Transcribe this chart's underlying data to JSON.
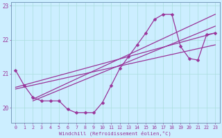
{
  "xlabel": "Windchill (Refroidissement éolien,°C)",
  "background_color": "#cceeff",
  "grid_color": "#aadddd",
  "line_color": "#993399",
  "xlim": [
    -0.5,
    23.5
  ],
  "ylim": [
    19.55,
    23.1
  ],
  "yticks": [
    20,
    21,
    22,
    23
  ],
  "xticks": [
    0,
    1,
    2,
    3,
    4,
    5,
    6,
    7,
    8,
    9,
    10,
    11,
    12,
    13,
    14,
    15,
    16,
    17,
    18,
    19,
    20,
    21,
    22,
    23
  ],
  "jagged_x": [
    0,
    1,
    2,
    3,
    4,
    5,
    6,
    7,
    8,
    9,
    10,
    11,
    12,
    13,
    14,
    15,
    16,
    17,
    18,
    19,
    20,
    21,
    22,
    23
  ],
  "jagged_y": [
    21.1,
    20.65,
    20.3,
    20.2,
    20.2,
    20.2,
    19.95,
    19.85,
    19.85,
    19.85,
    20.15,
    20.65,
    21.15,
    21.5,
    21.85,
    22.2,
    22.6,
    22.75,
    22.75,
    21.8,
    21.45,
    21.4,
    22.15,
    22.2
  ],
  "trend_lines": [
    {
      "x": [
        0,
        23
      ],
      "y": [
        20.6,
        22.2
      ]
    },
    {
      "x": [
        0,
        23
      ],
      "y": [
        20.55,
        21.85
      ]
    },
    {
      "x": [
        2,
        23
      ],
      "y": [
        20.25,
        22.75
      ]
    },
    {
      "x": [
        2,
        23
      ],
      "y": [
        20.2,
        22.4
      ]
    }
  ]
}
